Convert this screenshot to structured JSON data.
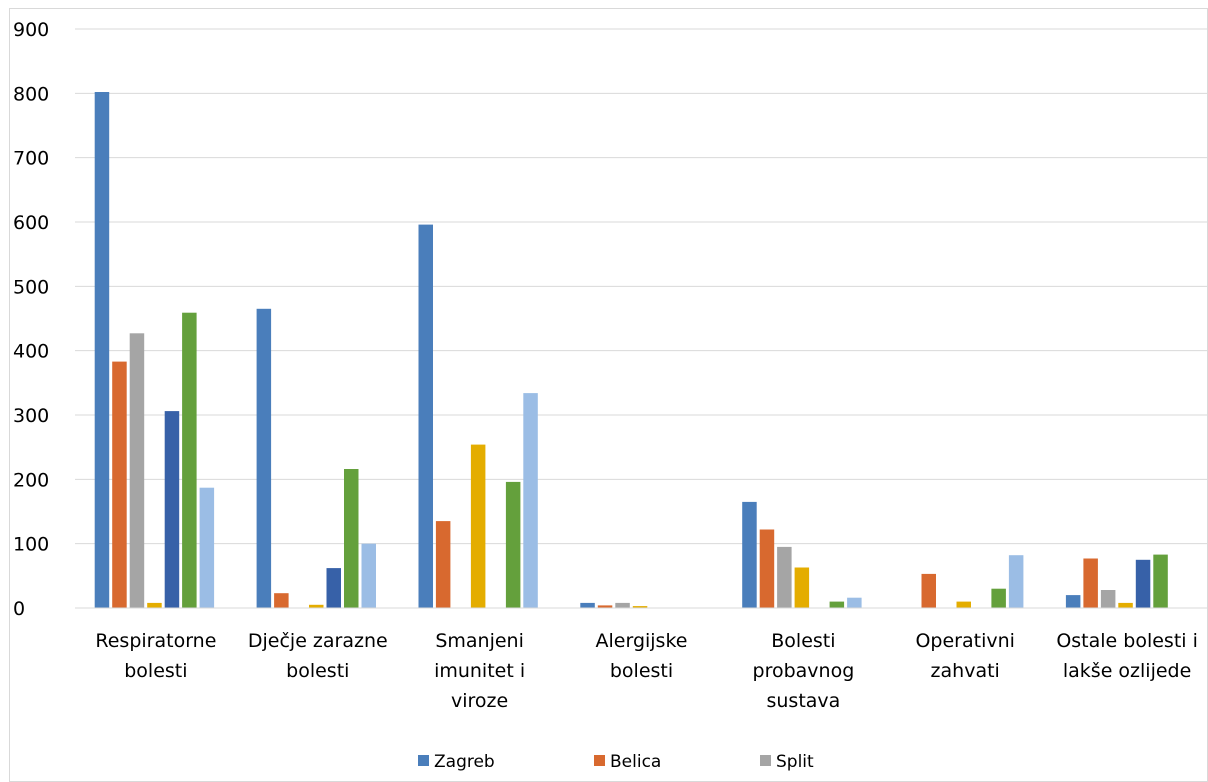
{
  "chart_data": {
    "type": "bar",
    "title": "",
    "xlabel": "",
    "ylabel": "",
    "ylim": [
      0,
      900
    ],
    "yticks": [
      0,
      100,
      200,
      300,
      400,
      500,
      600,
      700,
      800,
      900
    ],
    "grid": true,
    "legend_position": "bottom",
    "categories": [
      [
        "Respiratorne",
        "bolesti"
      ],
      [
        "Dječje zarazne",
        "bolesti"
      ],
      [
        "Smanjeni",
        "imunitet i",
        "viroze"
      ],
      [
        "Alergijske",
        "bolesti"
      ],
      [
        "Bolesti",
        "probavnog",
        "sustava"
      ],
      [
        "Operativni",
        "zahvati"
      ],
      [
        "Ostale bolesti i",
        "lakše ozlijede"
      ]
    ],
    "series": [
      {
        "name": "Zagreb",
        "color": "#4a7ebb",
        "values": [
          802,
          465,
          596,
          8,
          165,
          0,
          20
        ]
      },
      {
        "name": "Belica",
        "color": "#d8692f",
        "values": [
          383,
          23,
          135,
          4,
          122,
          53,
          77
        ]
      },
      {
        "name": "Split",
        "color": "#a5a5a5",
        "values": [
          427,
          0,
          0,
          8,
          95,
          0,
          28
        ]
      },
      {
        "color": "#e4ad00",
        "values": [
          8,
          5,
          254,
          3,
          63,
          10,
          8
        ]
      },
      {
        "color": "#3761a8",
        "values": [
          306,
          62,
          0,
          0,
          0,
          0,
          75
        ]
      },
      {
        "color": "#64a03c",
        "values": [
          459,
          216,
          196,
          0,
          10,
          30,
          83
        ]
      },
      {
        "color": "#9bbde5",
        "values": [
          187,
          100,
          334,
          0,
          16,
          82,
          0
        ]
      }
    ]
  }
}
